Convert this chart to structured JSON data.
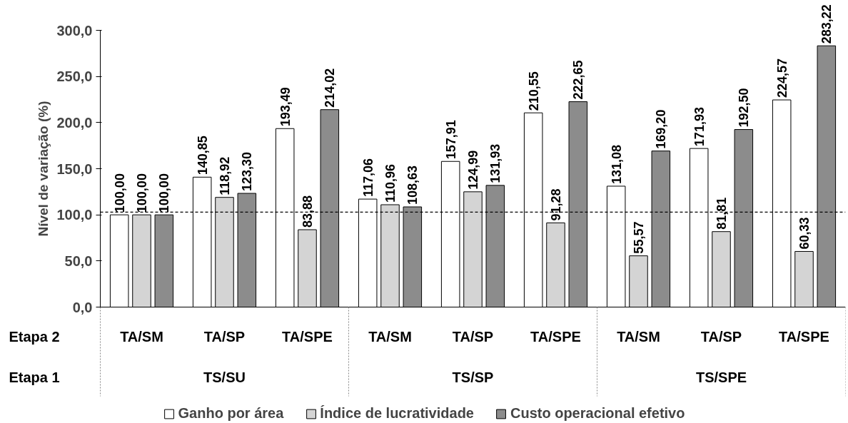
{
  "chart_data": {
    "type": "bar",
    "ylabel": "Nível de variação (%)",
    "categories": [
      "TA/SM",
      "TA/SP",
      "TA/SPE",
      "TA/SM",
      "TA/SP",
      "TA/SPE",
      "TA/SM",
      "TA/SP",
      "TA/SPE"
    ],
    "annotations": [
      "Etapa 2",
      "Etapa 1",
      "TS/SU",
      "TS/SP",
      "TS/SPE"
    ],
    "series": [
      {
        "name": "Ganho por área",
        "color": "#ffffff",
        "values": [
          100.0,
          140.85,
          193.49,
          117.06,
          157.91,
          210.55,
          131.08,
          171.93,
          224.57
        ],
        "value_labels": [
          "100,00",
          "140,85",
          "193,49",
          "117,06",
          "157,91",
          "210,55",
          "131,08",
          "171,93",
          "224,57"
        ]
      },
      {
        "name": "Índice de lucratividade",
        "color": "#d4d4d4",
        "values": [
          100.0,
          118.92,
          83.88,
          110.96,
          124.99,
          91.28,
          55.57,
          81.81,
          60.33
        ],
        "value_labels": [
          "100,00",
          "118,92",
          "83,88",
          "110,96",
          "124,99",
          "91,28",
          "55,57",
          "81,81",
          "60,33"
        ]
      },
      {
        "name": "Custo operacional efetivo",
        "color": "#8c8c8c",
        "values": [
          100.0,
          123.3,
          214.02,
          108.63,
          131.93,
          222.65,
          169.2,
          192.5,
          283.22
        ],
        "value_labels": [
          "100,00",
          "123,30",
          "214,02",
          "108,63",
          "131,93",
          "222,65",
          "169,20",
          "192,50",
          "283,22"
        ]
      }
    ],
    "ylim": [
      0,
      300
    ],
    "yticks": [
      {
        "value": 0,
        "label": "0,0"
      },
      {
        "value": 50,
        "label": "50,0"
      },
      {
        "value": 100,
        "label": "100,0"
      },
      {
        "value": 150,
        "label": "150,0"
      },
      {
        "value": 200,
        "label": "200,0"
      },
      {
        "value": 250,
        "label": "250,0"
      },
      {
        "value": 300,
        "label": "300,0"
      }
    ],
    "ref_lines": [
      {
        "axis": "y",
        "value": 103,
        "line_style": "dashed",
        "color": "#000000"
      }
    ],
    "grid": false,
    "legend": "bottom"
  }
}
